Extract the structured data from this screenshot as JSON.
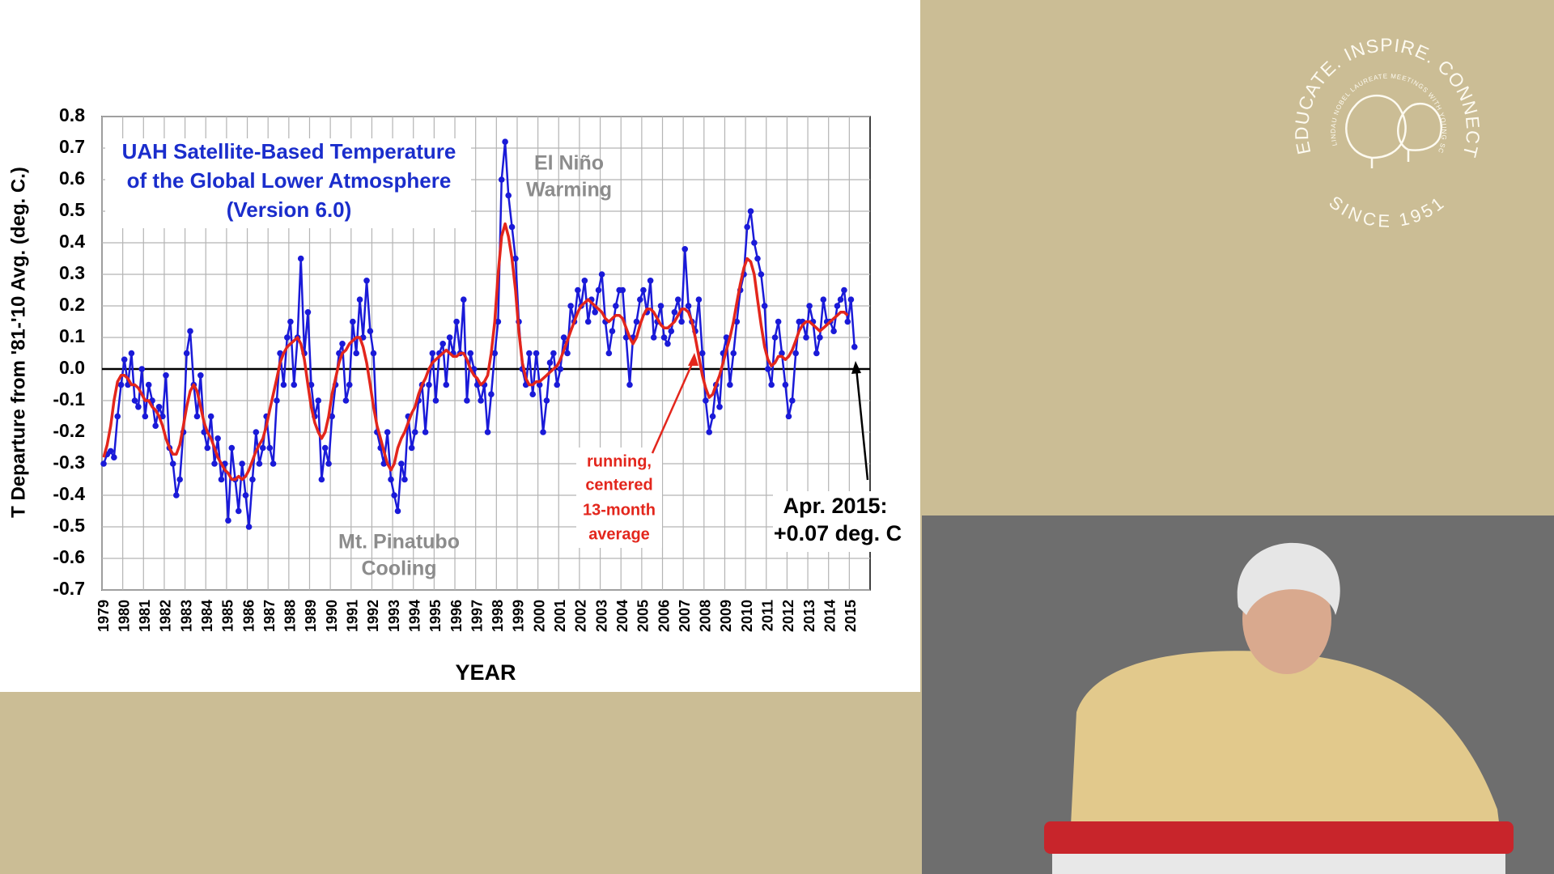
{
  "chart_data": {
    "type": "line",
    "title": [
      "UAH Satellite-Based Temperature",
      "of the Global Lower Atmosphere",
      "(Version 6.0)"
    ],
    "y_label": "T Departure from '81-'10 Avg. (deg. C.)",
    "x_label": "YEAR",
    "annotations": [
      {
        "lines": [
          "El Niño",
          "Warming"
        ]
      },
      {
        "lines": [
          "Mt. Pinatubo",
          "Cooling"
        ]
      },
      {
        "lines": [
          "running,",
          "centered",
          "13-month",
          "average"
        ]
      },
      {
        "lines": [
          "Apr. 2015:",
          "+0.07 deg. C"
        ]
      }
    ],
    "grid": true,
    "xlim": [
      1979,
      2016
    ],
    "ylim": [
      -0.7,
      0.8
    ],
    "xticks": [
      1979,
      1980,
      1981,
      1982,
      1983,
      1984,
      1985,
      1986,
      1987,
      1988,
      1989,
      1990,
      1991,
      1992,
      1993,
      1994,
      1995,
      1996,
      1997,
      1998,
      1999,
      2000,
      2001,
      2002,
      2003,
      2004,
      2005,
      2006,
      2007,
      2008,
      2009,
      2010,
      2011,
      2012,
      2013,
      2014,
      2015
    ],
    "yticks": [
      0.8,
      0.7,
      0.6,
      0.5,
      0.4,
      0.3,
      0.2,
      0.1,
      {
        "value": 0,
        "label": "0.0"
      },
      -0.1,
      -0.2,
      -0.3,
      -0.4,
      -0.5,
      -0.6,
      -0.7
    ],
    "x": [
      1979.08,
      1979.25,
      1979.42,
      1979.58,
      1979.75,
      1979.92,
      1980.08,
      1980.25,
      1980.42,
      1980.58,
      1980.75,
      1980.92,
      1981.08,
      1981.25,
      1981.42,
      1981.58,
      1981.75,
      1981.92,
      1982.08,
      1982.25,
      1982.42,
      1982.58,
      1982.75,
      1982.92,
      1983.08,
      1983.25,
      1983.42,
      1983.58,
      1983.75,
      1983.92,
      1984.08,
      1984.25,
      1984.42,
      1984.58,
      1984.75,
      1984.92,
      1985.08,
      1985.25,
      1985.42,
      1985.58,
      1985.75,
      1985.92,
      1986.08,
      1986.25,
      1986.42,
      1986.58,
      1986.75,
      1986.92,
      1987.08,
      1987.25,
      1987.42,
      1987.58,
      1987.75,
      1987.92,
      1988.08,
      1988.25,
      1988.42,
      1988.58,
      1988.75,
      1988.92,
      1989.08,
      1989.25,
      1989.42,
      1989.58,
      1989.75,
      1989.92,
      1990.08,
      1990.25,
      1990.42,
      1990.58,
      1990.75,
      1990.92,
      1991.08,
      1991.25,
      1991.42,
      1991.58,
      1991.75,
      1991.92,
      1992.08,
      1992.25,
      1992.42,
      1992.58,
      1992.75,
      1992.92,
      1993.08,
      1993.25,
      1993.42,
      1993.58,
      1993.75,
      1993.92,
      1994.08,
      1994.25,
      1994.42,
      1994.58,
      1994.75,
      1994.92,
      1995.08,
      1995.25,
      1995.42,
      1995.58,
      1995.75,
      1995.92,
      1996.08,
      1996.25,
      1996.42,
      1996.58,
      1996.75,
      1996.92,
      1997.08,
      1997.25,
      1997.42,
      1997.58,
      1997.75,
      1997.92,
      1998.08,
      1998.25,
      1998.42,
      1998.58,
      1998.75,
      1998.92,
      1999.08,
      1999.25,
      1999.42,
      1999.58,
      1999.75,
      1999.92,
      2000.08,
      2000.25,
      2000.42,
      2000.58,
      2000.75,
      2000.92,
      2001.08,
      2001.25,
      2001.42,
      2001.58,
      2001.75,
      2001.92,
      2002.08,
      2002.25,
      2002.42,
      2002.58,
      2002.75,
      2002.92,
      2003.08,
      2003.25,
      2003.42,
      2003.58,
      2003.75,
      2003.92,
      2004.08,
      2004.25,
      2004.42,
      2004.58,
      2004.75,
      2004.92,
      2005.08,
      2005.25,
      2005.42,
      2005.58,
      2005.75,
      2005.92,
      2006.08,
      2006.25,
      2006.42,
      2006.58,
      2006.75,
      2006.92,
      2007.08,
      2007.25,
      2007.42,
      2007.58,
      2007.75,
      2007.92,
      2008.08,
      2008.25,
      2008.42,
      2008.58,
      2008.75,
      2008.92,
      2009.08,
      2009.25,
      2009.42,
      2009.58,
      2009.75,
      2009.92,
      2010.08,
      2010.25,
      2010.42,
      2010.58,
      2010.75,
      2010.92,
      2011.08,
      2011.25,
      2011.42,
      2011.58,
      2011.75,
      2011.92,
      2012.08,
      2012.25,
      2012.42,
      2012.58,
      2012.75,
      2012.92,
      2013.08,
      2013.25,
      2013.42,
      2013.58,
      2013.75,
      2013.92,
      2014.08,
      2014.25,
      2014.42,
      2014.58,
      2014.75,
      2014.92,
      2015.08,
      2015.25
    ],
    "series": [
      {
        "color": "#1a1ad8",
        "markers": true,
        "values": [
          -0.3,
          -0.27,
          -0.26,
          -0.28,
          -0.15,
          -0.05,
          0.03,
          -0.05,
          0.05,
          -0.1,
          -0.12,
          0.0,
          -0.15,
          -0.05,
          -0.1,
          -0.18,
          -0.12,
          -0.15,
          -0.02,
          -0.25,
          -0.3,
          -0.4,
          -0.35,
          -0.2,
          0.05,
          0.12,
          -0.05,
          -0.15,
          -0.02,
          -0.2,
          -0.25,
          -0.15,
          -0.3,
          -0.22,
          -0.35,
          -0.3,
          -0.48,
          -0.25,
          -0.35,
          -0.45,
          -0.3,
          -0.4,
          -0.5,
          -0.35,
          -0.2,
          -0.3,
          -0.25,
          -0.15,
          -0.25,
          -0.3,
          -0.1,
          0.05,
          -0.05,
          0.1,
          0.15,
          -0.05,
          0.1,
          0.35,
          0.05,
          0.18,
          -0.05,
          -0.15,
          -0.1,
          -0.35,
          -0.25,
          -0.3,
          -0.15,
          -0.05,
          0.05,
          0.08,
          -0.1,
          -0.05,
          0.15,
          0.05,
          0.22,
          0.1,
          0.28,
          0.12,
          0.05,
          -0.2,
          -0.25,
          -0.3,
          -0.2,
          -0.35,
          -0.4,
          -0.45,
          -0.3,
          -0.35,
          -0.15,
          -0.25,
          -0.2,
          -0.1,
          -0.05,
          -0.2,
          -0.05,
          0.05,
          -0.1,
          0.05,
          0.08,
          -0.05,
          0.1,
          0.05,
          0.15,
          0.05,
          0.22,
          -0.1,
          0.05,
          0.0,
          -0.05,
          -0.1,
          -0.05,
          -0.2,
          -0.08,
          0.05,
          0.15,
          0.6,
          0.72,
          0.55,
          0.45,
          0.35,
          0.15,
          0.0,
          -0.05,
          0.05,
          -0.08,
          0.05,
          -0.05,
          -0.2,
          -0.1,
          0.02,
          0.05,
          -0.05,
          0.0,
          0.1,
          0.05,
          0.2,
          0.15,
          0.25,
          0.2,
          0.28,
          0.15,
          0.22,
          0.18,
          0.25,
          0.3,
          0.15,
          0.05,
          0.12,
          0.2,
          0.25,
          0.25,
          0.1,
          -0.05,
          0.1,
          0.15,
          0.22,
          0.25,
          0.18,
          0.28,
          0.1,
          0.15,
          0.2,
          0.1,
          0.08,
          0.12,
          0.18,
          0.22,
          0.15,
          0.38,
          0.2,
          0.15,
          0.12,
          0.22,
          0.05,
          -0.1,
          -0.2,
          -0.15,
          -0.05,
          -0.12,
          0.05,
          0.1,
          -0.05,
          0.05,
          0.15,
          0.25,
          0.3,
          0.45,
          0.5,
          0.4,
          0.35,
          0.3,
          0.2,
          0.0,
          -0.05,
          0.1,
          0.15,
          0.05,
          -0.05,
          -0.15,
          -0.1,
          0.05,
          0.15,
          0.15,
          0.1,
          0.2,
          0.15,
          0.05,
          0.1,
          0.22,
          0.15,
          0.15,
          0.12,
          0.2,
          0.22,
          0.25,
          0.15,
          0.22,
          0.07
        ]
      },
      {
        "color": "#e3261c",
        "markers": false,
        "values": [
          -0.28,
          -0.24,
          -0.18,
          -0.1,
          -0.04,
          -0.02,
          -0.02,
          -0.03,
          -0.05,
          -0.05,
          -0.06,
          -0.08,
          -0.1,
          -0.1,
          -0.12,
          -0.13,
          -0.15,
          -0.18,
          -0.22,
          -0.25,
          -0.27,
          -0.27,
          -0.24,
          -0.18,
          -0.12,
          -0.07,
          -0.05,
          -0.07,
          -0.12,
          -0.17,
          -0.2,
          -0.22,
          -0.25,
          -0.28,
          -0.3,
          -0.32,
          -0.33,
          -0.35,
          -0.35,
          -0.34,
          -0.35,
          -0.34,
          -0.32,
          -0.29,
          -0.26,
          -0.24,
          -0.22,
          -0.18,
          -0.13,
          -0.08,
          -0.03,
          0.02,
          0.05,
          0.07,
          0.08,
          0.09,
          0.1,
          0.08,
          0.03,
          -0.05,
          -0.12,
          -0.17,
          -0.2,
          -0.22,
          -0.2,
          -0.15,
          -0.08,
          -0.03,
          0.02,
          0.05,
          0.06,
          0.08,
          0.09,
          0.1,
          0.1,
          0.07,
          0.02,
          -0.05,
          -0.12,
          -0.18,
          -0.22,
          -0.26,
          -0.3,
          -0.32,
          -0.3,
          -0.25,
          -0.22,
          -0.2,
          -0.17,
          -0.14,
          -0.12,
          -0.08,
          -0.05,
          -0.03,
          0.0,
          0.02,
          0.03,
          0.04,
          0.05,
          0.06,
          0.05,
          0.04,
          0.04,
          0.05,
          0.05,
          0.03,
          0.0,
          -0.02,
          -0.03,
          -0.05,
          -0.04,
          -0.02,
          0.05,
          0.15,
          0.3,
          0.42,
          0.46,
          0.42,
          0.35,
          0.25,
          0.12,
          0.02,
          -0.03,
          -0.05,
          -0.05,
          -0.04,
          -0.04,
          -0.03,
          -0.02,
          -0.01,
          0.0,
          0.01,
          0.03,
          0.06,
          0.09,
          0.12,
          0.15,
          0.18,
          0.2,
          0.21,
          0.22,
          0.21,
          0.2,
          0.19,
          0.18,
          0.16,
          0.15,
          0.16,
          0.17,
          0.17,
          0.16,
          0.13,
          0.1,
          0.08,
          0.1,
          0.14,
          0.17,
          0.19,
          0.19,
          0.18,
          0.16,
          0.14,
          0.13,
          0.13,
          0.14,
          0.15,
          0.17,
          0.19,
          0.19,
          0.18,
          0.15,
          0.1,
          0.04,
          -0.02,
          -0.06,
          -0.09,
          -0.08,
          -0.05,
          -0.02,
          0.02,
          0.06,
          0.1,
          0.15,
          0.21,
          0.27,
          0.32,
          0.35,
          0.34,
          0.3,
          0.22,
          0.14,
          0.07,
          0.03,
          0.01,
          0.02,
          0.04,
          0.04,
          0.03,
          0.04,
          0.06,
          0.09,
          0.12,
          0.14,
          0.15,
          0.15,
          0.14,
          0.13,
          0.12,
          0.13,
          0.14,
          0.15,
          0.16,
          0.17,
          0.18,
          0.18,
          0.17,
          null,
          null
        ]
      }
    ]
  },
  "logo": {
    "motto": "EDUCATE. INSPIRE. CONNECT.",
    "since": "SINCE 1951",
    "inner": "LINDAU NOBEL LAUREATE MEETINGS WITH YOUNG SCIENTISTS"
  }
}
